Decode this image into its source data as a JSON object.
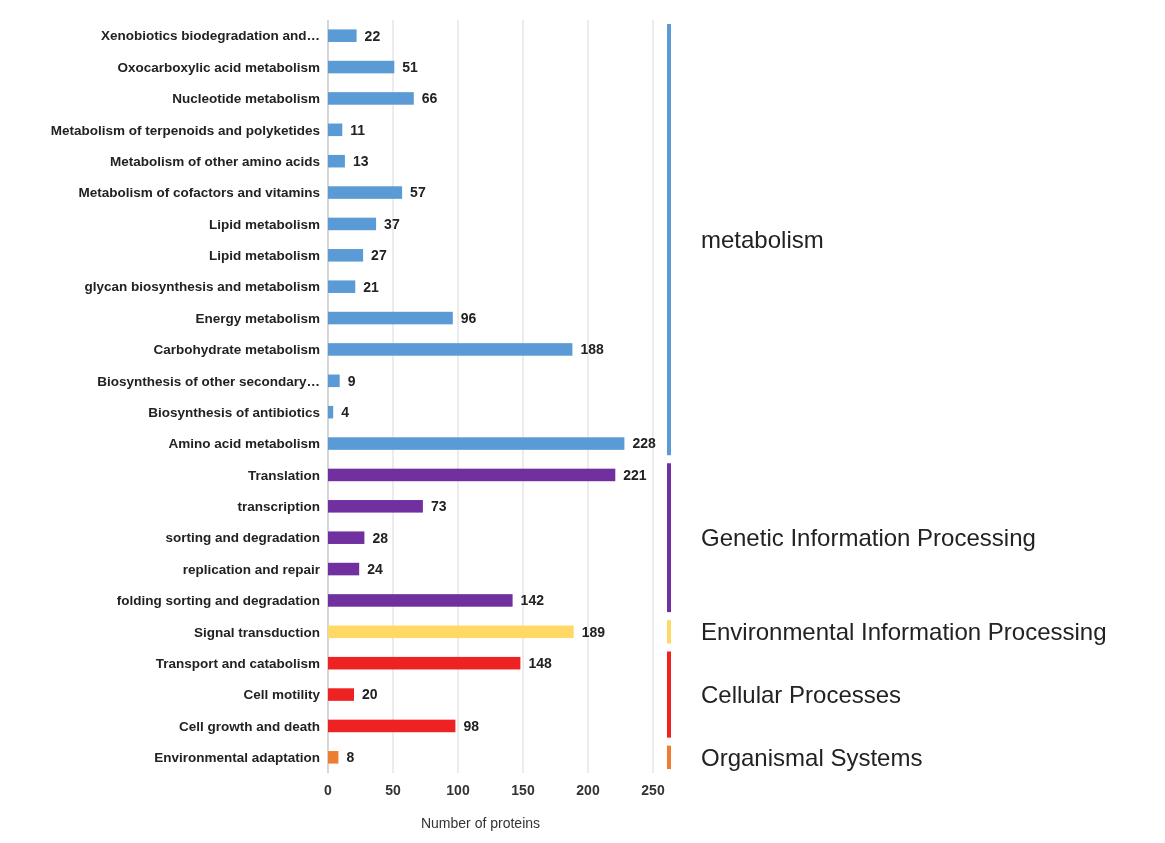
{
  "chart_data": {
    "type": "bar",
    "orientation": "horizontal",
    "xlabel": "Number of proteins",
    "categories": [
      "Xenobiotics biodegradation and…",
      "Oxocarboxylic acid metabolism",
      "Nucleotide metabolism",
      "Metabolism of terpenoids and polyketides",
      "Metabolism of other amino acids",
      "Metabolism of cofactors and vitamins",
      "Lipid metabolism",
      "Lipid metabolism",
      "glycan biosynthesis and metabolism",
      "Energy metabolism",
      "Carbohydrate metabolism",
      "Biosynthesis of other secondary…",
      "Biosynthesis of antibiotics",
      "Amino acid metabolism",
      "Translation",
      "transcription",
      "sorting and degradation",
      "replication and repair",
      "folding sorting and degradation",
      "Signal transduction",
      "Transport and catabolism",
      "Cell motility",
      "Cell growth and death",
      "Environmental adaptation"
    ],
    "values": [
      22,
      51,
      66,
      11,
      13,
      57,
      37,
      27,
      21,
      96,
      188,
      9,
      4,
      228,
      221,
      73,
      28,
      24,
      142,
      189,
      148,
      20,
      98,
      8
    ],
    "colors": [
      "#5b9bd5",
      "#5b9bd5",
      "#5b9bd5",
      "#5b9bd5",
      "#5b9bd5",
      "#5b9bd5",
      "#5b9bd5",
      "#5b9bd5",
      "#5b9bd5",
      "#5b9bd5",
      "#5b9bd5",
      "#5b9bd5",
      "#5b9bd5",
      "#5b9bd5",
      "#7030a0",
      "#7030a0",
      "#7030a0",
      "#7030a0",
      "#7030a0",
      "#ffd966",
      "#ee2222",
      "#ee2222",
      "#ee2222",
      "#ed7d31"
    ],
    "xlim": [
      0,
      250
    ],
    "xticks": [
      0,
      50,
      100,
      150,
      200,
      250
    ],
    "grid": "x",
    "data_labels": true,
    "annotations": [
      "metabolism",
      "Genetic Information Processing",
      "Environmental Information Processing",
      "Cellular Processes",
      "Organismal Systems"
    ]
  }
}
